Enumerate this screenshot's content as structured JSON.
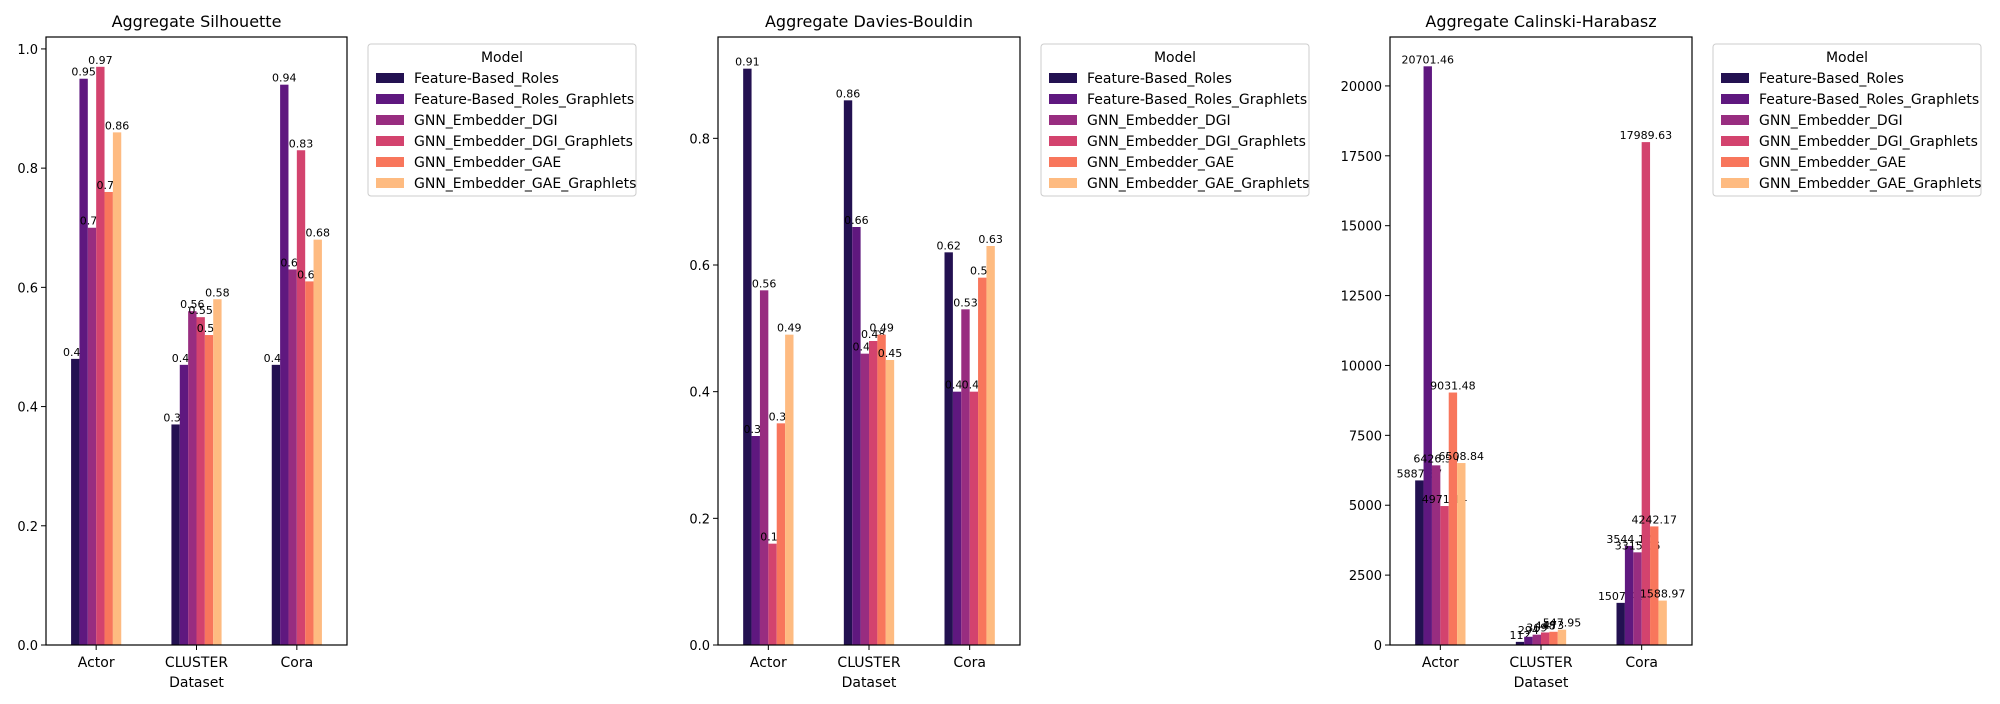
{
  "legend": {
    "title": "Model",
    "entries": [
      {
        "name": "Feature-Based_Roles",
        "color": "#231151"
      },
      {
        "name": "Feature-Based_Roles_Graphlets",
        "color": "#5f187f"
      },
      {
        "name": "GNN_Embedder_DGI",
        "color": "#982d80"
      },
      {
        "name": "GNN_Embedder_DGI_Graphlets",
        "color": "#d3436e"
      },
      {
        "name": "GNN_Embedder_GAE",
        "color": "#f8765c"
      },
      {
        "name": "GNN_Embedder_GAE_Graphlets",
        "color": "#febb81"
      }
    ]
  },
  "chart_data": [
    {
      "type": "bar",
      "title": "Aggregate Silhouette",
      "xlabel": "Dataset",
      "ylabel": "",
      "categories": [
        "Actor",
        "CLUSTER",
        "Cora"
      ],
      "ylim": [
        0,
        1.02
      ],
      "yticks": [
        0.0,
        0.2,
        0.4,
        0.6,
        0.8,
        1.0
      ],
      "tick_labels": [
        "0.0",
        "0.2",
        "0.4",
        "0.6",
        "0.8",
        "1.0"
      ],
      "legend_position": "outside-right",
      "series": [
        {
          "name": "Feature-Based_Roles",
          "values": [
            0.48,
            0.37,
            0.47
          ],
          "labels": [
            "0.48",
            "0.37",
            "0.47"
          ]
        },
        {
          "name": "Feature-Based_Roles_Graphlets",
          "values": [
            0.95,
            0.47,
            0.94
          ],
          "labels": [
            "0.95",
            "0.47",
            "0.94"
          ]
        },
        {
          "name": "GNN_Embedder_DGI",
          "values": [
            0.7,
            0.56,
            0.63
          ],
          "labels": [
            "0.70",
            "0.56",
            "0.63"
          ]
        },
        {
          "name": "GNN_Embedder_DGI_Graphlets",
          "values": [
            0.97,
            0.55,
            0.83
          ],
          "labels": [
            "0.97",
            "0.55",
            "0.83"
          ]
        },
        {
          "name": "GNN_Embedder_GAE",
          "values": [
            0.76,
            0.52,
            0.61
          ],
          "labels": [
            "0.76",
            "0.52",
            "0.61"
          ]
        },
        {
          "name": "GNN_Embedder_GAE_Graphlets",
          "values": [
            0.86,
            0.58,
            0.68
          ],
          "labels": [
            "0.86",
            "0.58",
            "0.68"
          ]
        }
      ]
    },
    {
      "type": "bar",
      "title": "Aggregate Davies-Bouldin",
      "xlabel": "Dataset",
      "ylabel": "",
      "categories": [
        "Actor",
        "CLUSTER",
        "Cora"
      ],
      "ylim": [
        0,
        0.96
      ],
      "yticks": [
        0.0,
        0.2,
        0.4,
        0.6,
        0.8
      ],
      "tick_labels": [
        "0.0",
        "0.2",
        "0.4",
        "0.6",
        "0.8"
      ],
      "legend_position": "outside-right",
      "series": [
        {
          "name": "Feature-Based_Roles",
          "values": [
            0.91,
            0.86,
            0.62
          ],
          "labels": [
            "0.91",
            "0.86",
            "0.62"
          ]
        },
        {
          "name": "Feature-Based_Roles_Graphlets",
          "values": [
            0.33,
            0.66,
            0.4
          ],
          "labels": [
            "0.33",
            "0.66",
            "0.40"
          ]
        },
        {
          "name": "GNN_Embedder_DGI",
          "values": [
            0.56,
            0.46,
            0.53
          ],
          "labels": [
            "0.56",
            "0.46",
            "0.53"
          ]
        },
        {
          "name": "GNN_Embedder_DGI_Graphlets",
          "values": [
            0.16,
            0.48,
            0.4
          ],
          "labels": [
            "0.16",
            "0.48",
            "0.40"
          ]
        },
        {
          "name": "GNN_Embedder_GAE",
          "values": [
            0.35,
            0.49,
            0.58
          ],
          "labels": [
            "0.35",
            "0.49",
            "0.58"
          ]
        },
        {
          "name": "GNN_Embedder_GAE_Graphlets",
          "values": [
            0.49,
            0.45,
            0.63
          ],
          "labels": [
            "0.49",
            "0.45",
            "0.63"
          ]
        }
      ]
    },
    {
      "type": "bar",
      "title": "Aggregate Calinski-Harabasz",
      "xlabel": "Dataset",
      "ylabel": "",
      "categories": [
        "Actor",
        "CLUSTER",
        "Cora"
      ],
      "ylim": [
        0,
        21750
      ],
      "yticks": [
        0,
        2500,
        5000,
        7500,
        10000,
        12500,
        15000,
        17500,
        20000
      ],
      "tick_labels": [
        "0",
        "2500",
        "5000",
        "7500",
        "10000",
        "12500",
        "15000",
        "17500",
        "20000"
      ],
      "legend_position": "outside-right",
      "series": [
        {
          "name": "Feature-Based_Roles",
          "values": [
            5887.87,
            112.0,
            1507.41
          ],
          "labels": [
            "5887.87",
            "112",
            "1507.41"
          ]
        },
        {
          "name": "Feature-Based_Roles_Graphlets",
          "values": [
            20701.46,
            294.0,
            3544.17
          ],
          "labels": [
            "20701.46",
            "294",
            "3544.17"
          ]
        },
        {
          "name": "GNN_Embedder_DGI",
          "values": [
            6426.5,
            369.0,
            3315.06
          ],
          "labels": [
            "6426.50",
            "369",
            "3315.06"
          ]
        },
        {
          "name": "GNN_Embedder_DGI_Graphlets",
          "values": [
            4971.14,
            448.0,
            17989.63
          ],
          "labels": [
            "4971.14",
            "448",
            "17989.63"
          ]
        },
        {
          "name": "GNN_Embedder_GAE",
          "values": [
            9031.48,
            473.0,
            4242.17
          ],
          "labels": [
            "9031.48",
            "473",
            "4242.17"
          ]
        },
        {
          "name": "GNN_Embedder_GAE_Graphlets",
          "values": [
            6508.84,
            547.95,
            1588.97
          ],
          "labels": [
            "6508.84",
            "547.95",
            "1588.97"
          ]
        }
      ]
    }
  ]
}
